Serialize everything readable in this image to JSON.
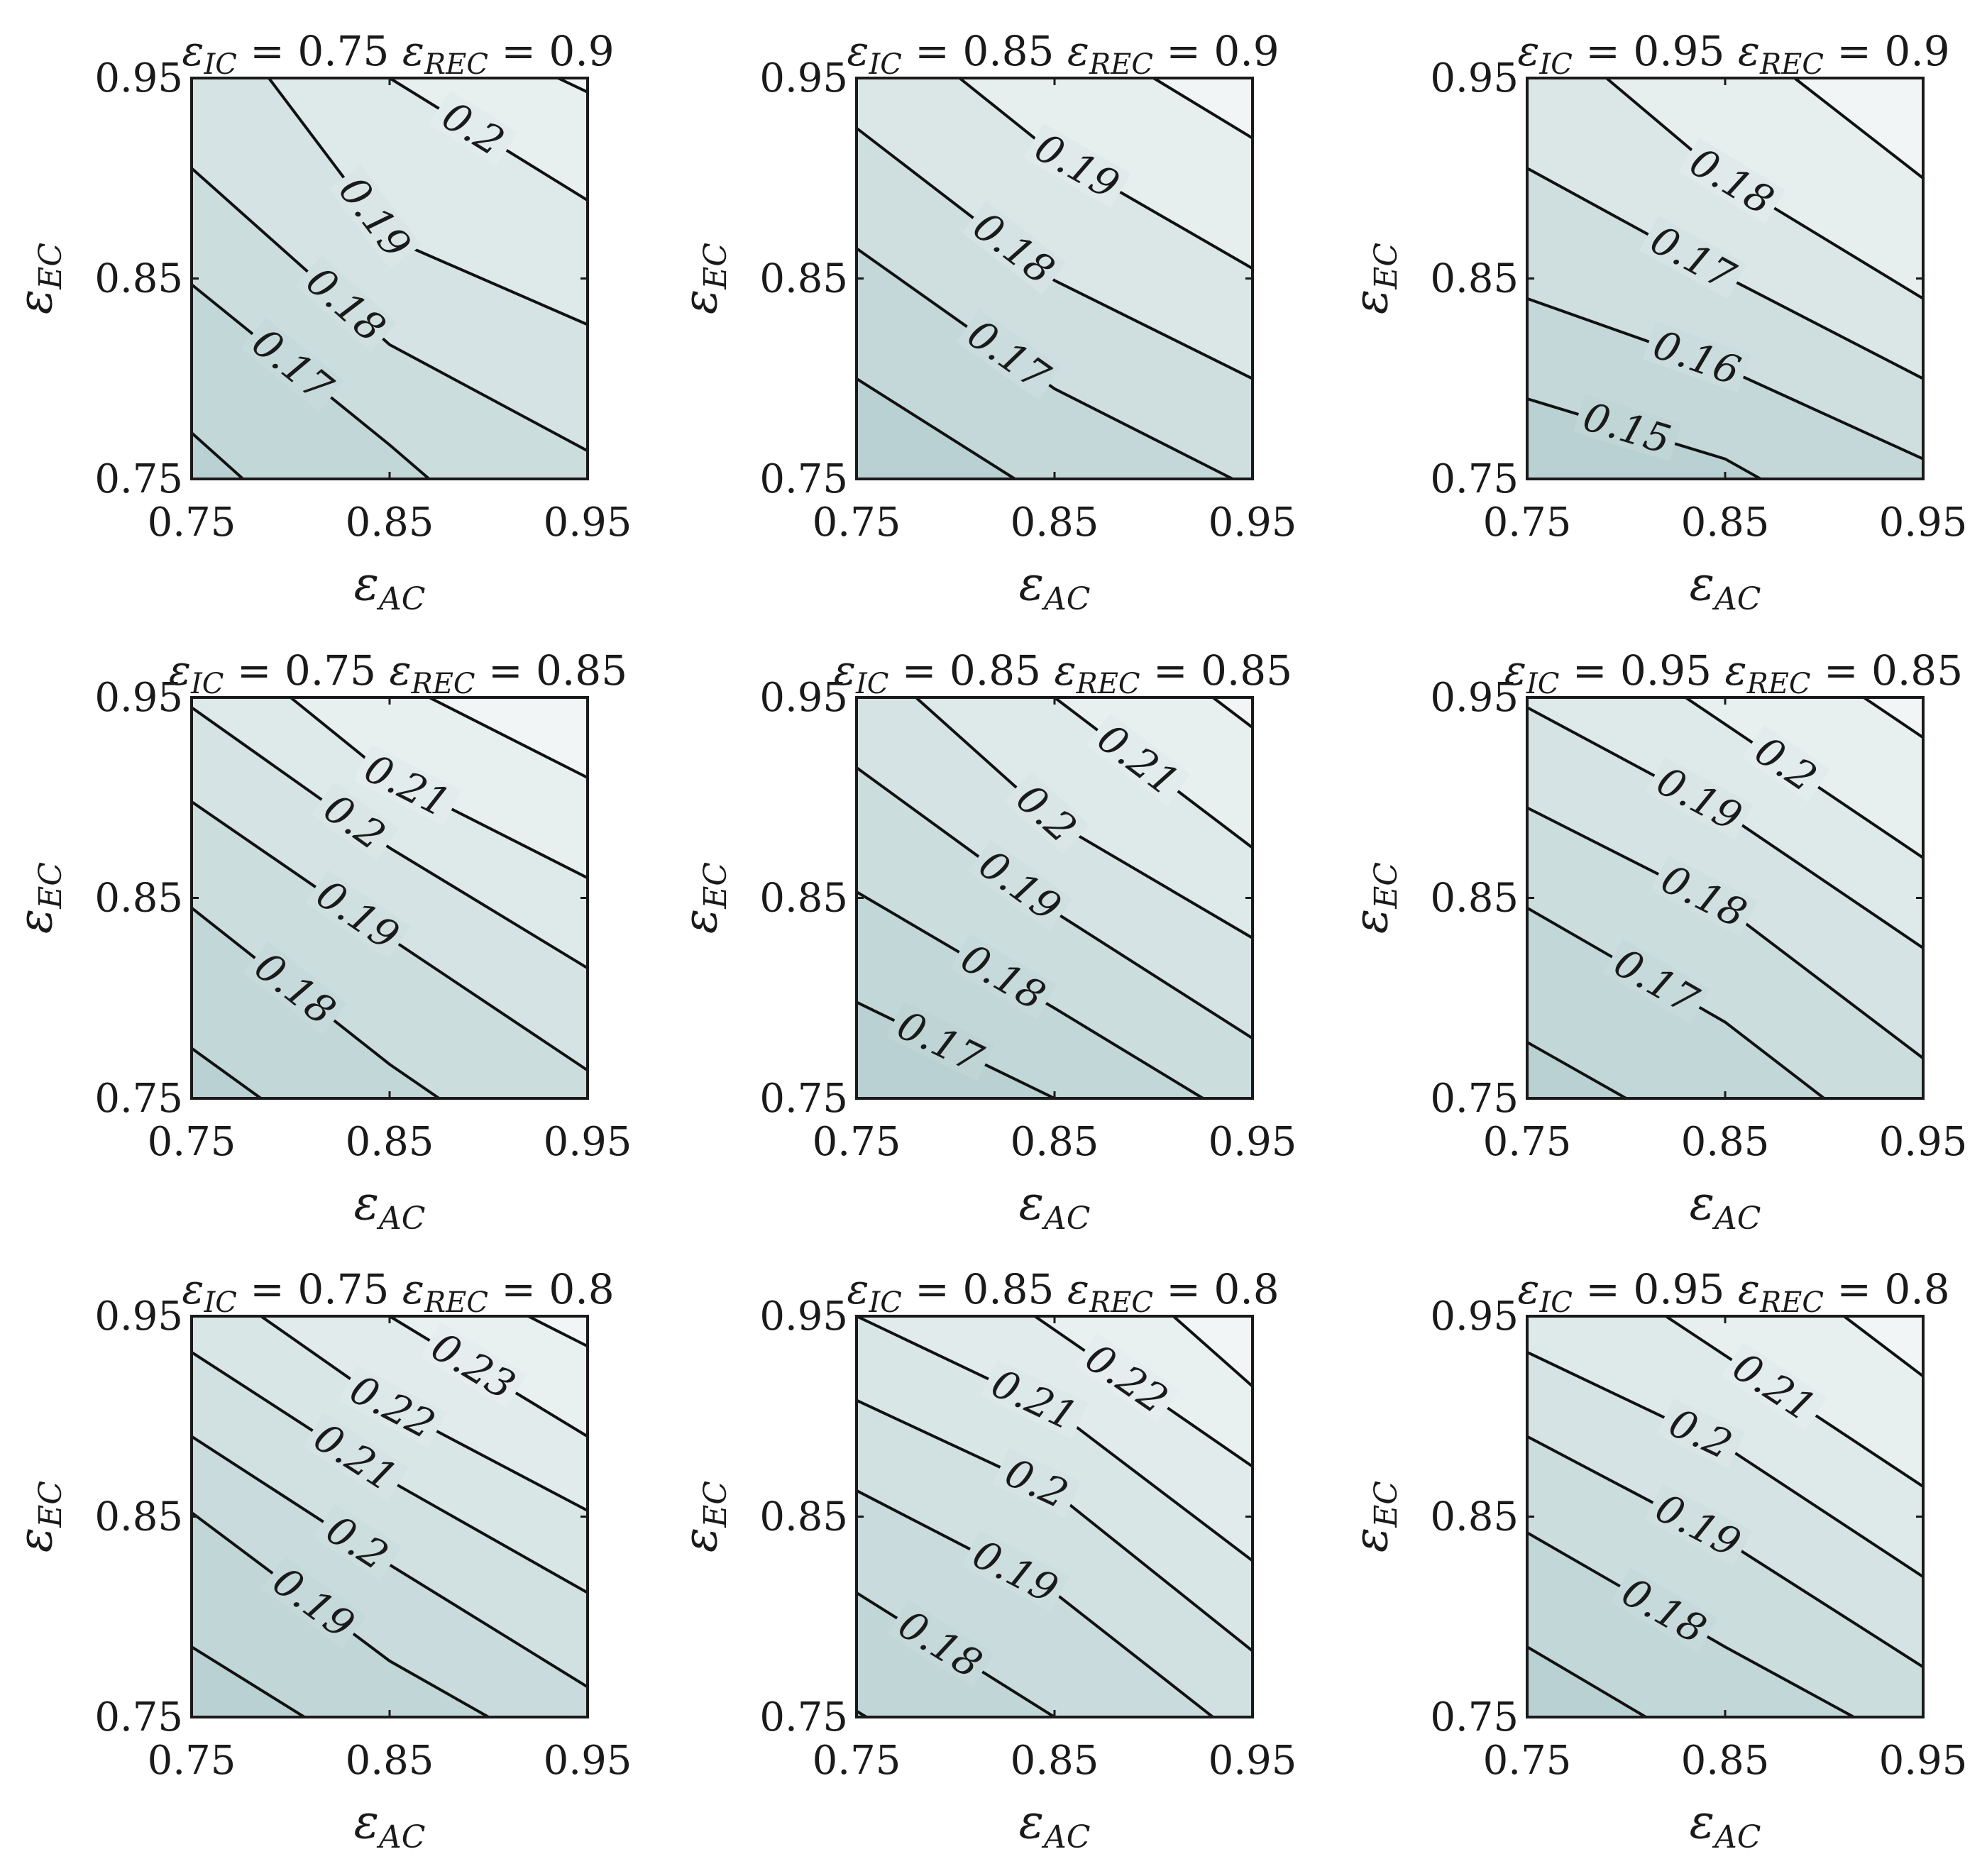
{
  "chart_data": [
    {
      "type": "contour",
      "title": "εIC = 0.75 εREC = 0.9",
      "x_label": "εAC",
      "y_label": "εEC",
      "xlim": [
        0.75,
        0.95
      ],
      "ylim": [
        0.75,
        0.95
      ],
      "x_ticks": [
        "0.75",
        "0.85",
        "0.95"
      ],
      "y_ticks": [
        "0.75",
        "0.85",
        "0.95"
      ],
      "levels": [
        {
          "value": "",
          "points": [
            [
              0.75,
              0.773
            ],
            [
              0.776,
              0.75
            ]
          ]
        },
        {
          "value": "0.17",
          "points": [
            [
              0.75,
              0.847
            ],
            [
              0.85,
              0.767
            ],
            [
              0.87,
              0.75
            ]
          ]
        },
        {
          "value": "0.18",
          "points": [
            [
              0.75,
              0.905
            ],
            [
              0.85,
              0.817
            ],
            [
              0.95,
              0.764
            ]
          ]
        },
        {
          "value": "0.19",
          "points": [
            [
              0.789,
              0.95
            ],
            [
              0.85,
              0.87
            ],
            [
              0.95,
              0.827
            ]
          ]
        },
        {
          "value": "0.2",
          "points": [
            [
              0.85,
              0.95
            ],
            [
              0.95,
              0.889
            ]
          ]
        },
        {
          "value": "",
          "points": [
            [
              0.935,
              0.95
            ],
            [
              0.95,
              0.943
            ]
          ]
        }
      ]
    },
    {
      "type": "contour",
      "title": "εIC = 0.85 εREC = 0.9",
      "x_label": "εAC",
      "y_label": "εEC",
      "xlim": [
        0.75,
        0.95
      ],
      "ylim": [
        0.75,
        0.95
      ],
      "x_ticks": [
        "0.75",
        "0.85",
        "0.95"
      ],
      "y_ticks": [
        "0.75",
        "0.85",
        "0.95"
      ],
      "levels": [
        {
          "value": "",
          "points": [
            [
              0.75,
              0.8
            ],
            [
              0.83,
              0.75
            ]
          ]
        },
        {
          "value": "0.17",
          "points": [
            [
              0.75,
              0.865
            ],
            [
              0.85,
              0.795
            ],
            [
              0.94,
              0.75
            ]
          ]
        },
        {
          "value": "0.18",
          "points": [
            [
              0.75,
              0.925
            ],
            [
              0.85,
              0.849
            ],
            [
              0.95,
              0.8
            ]
          ]
        },
        {
          "value": "0.19",
          "points": [
            [
              0.802,
              0.95
            ],
            [
              0.85,
              0.912
            ],
            [
              0.95,
              0.855
            ]
          ]
        },
        {
          "value": "",
          "points": [
            [
              0.9,
              0.95
            ],
            [
              0.95,
              0.92
            ]
          ]
        }
      ]
    },
    {
      "type": "contour",
      "title": "εIC = 0.95 εREC = 0.9",
      "x_label": "εAC",
      "y_label": "εEC",
      "xlim": [
        0.75,
        0.95
      ],
      "ylim": [
        0.75,
        0.95
      ],
      "x_ticks": [
        "0.75",
        "0.85",
        "0.95"
      ],
      "y_ticks": [
        "0.75",
        "0.85",
        "0.95"
      ],
      "levels": [
        {
          "value": "0.15",
          "points": [
            [
              0.75,
              0.79
            ],
            [
              0.85,
              0.76
            ],
            [
              0.868,
              0.75
            ]
          ]
        },
        {
          "value": "0.16",
          "points": [
            [
              0.75,
              0.84
            ],
            [
              0.85,
              0.805
            ],
            [
              0.95,
              0.76
            ]
          ]
        },
        {
          "value": "0.17",
          "points": [
            [
              0.75,
              0.905
            ],
            [
              0.85,
              0.851
            ],
            [
              0.95,
              0.8
            ]
          ]
        },
        {
          "value": "0.18",
          "points": [
            [
              0.79,
              0.95
            ],
            [
              0.85,
              0.9
            ],
            [
              0.95,
              0.84
            ]
          ]
        },
        {
          "value": "",
          "points": [
            [
              0.885,
              0.95
            ],
            [
              0.95,
              0.9
            ]
          ]
        }
      ]
    },
    {
      "type": "contour",
      "title": "εIC = 0.75 εREC = 0.85",
      "x_label": "εAC",
      "y_label": "εEC",
      "xlim": [
        0.75,
        0.95
      ],
      "ylim": [
        0.75,
        0.95
      ],
      "x_ticks": [
        "0.75",
        "0.85",
        "0.95"
      ],
      "y_ticks": [
        "0.75",
        "0.85",
        "0.95"
      ],
      "levels": [
        {
          "value": "",
          "points": [
            [
              0.75,
              0.775
            ],
            [
              0.785,
              0.75
            ]
          ]
        },
        {
          "value": "0.18",
          "points": [
            [
              0.75,
              0.845
            ],
            [
              0.85,
              0.767
            ],
            [
              0.875,
              0.75
            ]
          ]
        },
        {
          "value": "0.19",
          "points": [
            [
              0.75,
              0.898
            ],
            [
              0.85,
              0.83
            ],
            [
              0.95,
              0.764
            ]
          ]
        },
        {
          "value": "0.2",
          "points": [
            [
              0.75,
              0.945
            ],
            [
              0.85,
              0.875
            ],
            [
              0.95,
              0.815
            ]
          ]
        },
        {
          "value": "0.21",
          "points": [
            [
              0.8,
              0.95
            ],
            [
              0.85,
              0.91
            ],
            [
              0.95,
              0.86
            ]
          ]
        },
        {
          "value": "",
          "points": [
            [
              0.87,
              0.95
            ],
            [
              0.95,
              0.91
            ]
          ]
        }
      ]
    },
    {
      "type": "contour",
      "title": "εIC = 0.85 εREC = 0.85",
      "x_label": "εAC",
      "y_label": "εEC",
      "xlim": [
        0.75,
        0.95
      ],
      "ylim": [
        0.75,
        0.95
      ],
      "x_ticks": [
        "0.75",
        "0.85",
        "0.95"
      ],
      "y_ticks": [
        "0.75",
        "0.85",
        "0.95"
      ],
      "levels": [
        {
          "value": "0.17",
          "points": [
            [
              0.75,
              0.798
            ],
            [
              0.85,
              0.75
            ]
          ]
        },
        {
          "value": "0.18",
          "points": [
            [
              0.75,
              0.853
            ],
            [
              0.85,
              0.795
            ],
            [
              0.925,
              0.75
            ]
          ]
        },
        {
          "value": "0.19",
          "points": [
            [
              0.75,
              0.915
            ],
            [
              0.85,
              0.843
            ],
            [
              0.95,
              0.78
            ]
          ]
        },
        {
          "value": "0.2",
          "points": [
            [
              0.78,
              0.95
            ],
            [
              0.85,
              0.888
            ],
            [
              0.95,
              0.83
            ]
          ]
        },
        {
          "value": "0.21",
          "points": [
            [
              0.85,
              0.95
            ],
            [
              0.95,
              0.875
            ]
          ]
        },
        {
          "value": "",
          "points": [
            [
              0.93,
              0.95
            ],
            [
              0.95,
              0.935
            ]
          ]
        }
      ]
    },
    {
      "type": "contour",
      "title": "εIC = 0.95 εREC = 0.85",
      "x_label": "εAC",
      "y_label": "εEC",
      "xlim": [
        0.75,
        0.95
      ],
      "ylim": [
        0.75,
        0.95
      ],
      "x_ticks": [
        "0.75",
        "0.85",
        "0.95"
      ],
      "y_ticks": [
        "0.75",
        "0.85",
        "0.95"
      ],
      "levels": [
        {
          "value": "",
          "points": [
            [
              0.75,
              0.778
            ],
            [
              0.8,
              0.75
            ]
          ]
        },
        {
          "value": "0.17",
          "points": [
            [
              0.75,
              0.845
            ],
            [
              0.85,
              0.788
            ],
            [
              0.9,
              0.75
            ]
          ]
        },
        {
          "value": "0.18",
          "points": [
            [
              0.75,
              0.895
            ],
            [
              0.85,
              0.845
            ],
            [
              0.95,
              0.77
            ]
          ]
        },
        {
          "value": "0.19",
          "points": [
            [
              0.75,
              0.945
            ],
            [
              0.85,
              0.892
            ],
            [
              0.95,
              0.825
            ]
          ]
        },
        {
          "value": "0.2",
          "points": [
            [
              0.83,
              0.95
            ],
            [
              0.95,
              0.87
            ]
          ]
        },
        {
          "value": "",
          "points": [
            [
              0.92,
              0.95
            ],
            [
              0.95,
              0.93
            ]
          ]
        }
      ]
    },
    {
      "type": "contour",
      "title": "εIC = 0.75 εREC = 0.8",
      "x_label": "εAC",
      "y_label": "εEC",
      "xlim": [
        0.75,
        0.95
      ],
      "ylim": [
        0.75,
        0.95
      ],
      "x_ticks": [
        "0.75",
        "0.85",
        "0.95"
      ],
      "y_ticks": [
        "0.75",
        "0.85",
        "0.95"
      ],
      "levels": [
        {
          "value": "",
          "points": [
            [
              0.75,
              0.785
            ],
            [
              0.807,
              0.75
            ]
          ]
        },
        {
          "value": "0.19",
          "points": [
            [
              0.75,
              0.852
            ],
            [
              0.85,
              0.778
            ],
            [
              0.9,
              0.75
            ]
          ]
        },
        {
          "value": "0.2",
          "points": [
            [
              0.75,
              0.89
            ],
            [
              0.85,
              0.826
            ],
            [
              0.95,
              0.765
            ]
          ]
        },
        {
          "value": "0.21",
          "points": [
            [
              0.75,
              0.932
            ],
            [
              0.85,
              0.868
            ],
            [
              0.95,
              0.812
            ]
          ]
        },
        {
          "value": "0.22",
          "points": [
            [
              0.785,
              0.95
            ],
            [
              0.85,
              0.905
            ],
            [
              0.95,
              0.853
            ]
          ]
        },
        {
          "value": "0.23",
          "points": [
            [
              0.85,
              0.95
            ],
            [
              0.95,
              0.89
            ]
          ]
        },
        {
          "value": "",
          "points": [
            [
              0.92,
              0.95
            ],
            [
              0.95,
              0.935
            ]
          ]
        }
      ]
    },
    {
      "type": "contour",
      "title": "εIC = 0.85 εREC = 0.8",
      "x_label": "εAC",
      "y_label": "εEC",
      "xlim": [
        0.75,
        0.95
      ],
      "ylim": [
        0.75,
        0.95
      ],
      "x_ticks": [
        "0.75",
        "0.85",
        "0.95"
      ],
      "y_ticks": [
        "0.75",
        "0.85",
        "0.95"
      ],
      "levels": [
        {
          "value": "",
          "points": [
            [
              0.75,
              0.753
            ],
            [
              0.755,
              0.75
            ]
          ]
        },
        {
          "value": "0.18",
          "points": [
            [
              0.75,
              0.812
            ],
            [
              0.85,
              0.75
            ]
          ]
        },
        {
          "value": "0.19",
          "points": [
            [
              0.75,
              0.863
            ],
            [
              0.85,
              0.812
            ],
            [
              0.93,
              0.75
            ]
          ]
        },
        {
          "value": "0.2",
          "points": [
            [
              0.75,
              0.908
            ],
            [
              0.85,
              0.862
            ],
            [
              0.95,
              0.783
            ]
          ]
        },
        {
          "value": "0.21",
          "points": [
            [
              0.75,
              0.95
            ],
            [
              0.85,
              0.903
            ],
            [
              0.95,
              0.828
            ]
          ]
        },
        {
          "value": "0.22",
          "points": [
            [
              0.84,
              0.95
            ],
            [
              0.95,
              0.875
            ]
          ]
        },
        {
          "value": "",
          "points": [
            [
              0.91,
              0.95
            ],
            [
              0.95,
              0.915
            ]
          ]
        }
      ]
    },
    {
      "type": "contour",
      "title": "εIC = 0.95 εREC = 0.8",
      "x_label": "εAC",
      "y_label": "εEC",
      "xlim": [
        0.75,
        0.95
      ],
      "ylim": [
        0.75,
        0.95
      ],
      "x_ticks": [
        "0.75",
        "0.85",
        "0.95"
      ],
      "y_ticks": [
        "0.75",
        "0.85",
        "0.95"
      ],
      "levels": [
        {
          "value": "",
          "points": [
            [
              0.75,
              0.785
            ],
            [
              0.81,
              0.75
            ]
          ]
        },
        {
          "value": "0.18",
          "points": [
            [
              0.75,
              0.842
            ],
            [
              0.85,
              0.785
            ],
            [
              0.915,
              0.75
            ]
          ]
        },
        {
          "value": "0.19",
          "points": [
            [
              0.75,
              0.89
            ],
            [
              0.85,
              0.838
            ],
            [
              0.95,
              0.775
            ]
          ]
        },
        {
          "value": "0.2",
          "points": [
            [
              0.75,
              0.932
            ],
            [
              0.85,
              0.885
            ],
            [
              0.95,
              0.82
            ]
          ]
        },
        {
          "value": "0.21",
          "points": [
            [
              0.82,
              0.95
            ],
            [
              0.95,
              0.865
            ]
          ]
        },
        {
          "value": "",
          "points": [
            [
              0.91,
              0.95
            ],
            [
              0.95,
              0.92
            ]
          ]
        }
      ]
    }
  ],
  "colors": {
    "axes": "#1a1a1a",
    "contour_line": "#111111",
    "fill_low": "#b9d1d2",
    "fill_high": "#f1f5f5"
  }
}
